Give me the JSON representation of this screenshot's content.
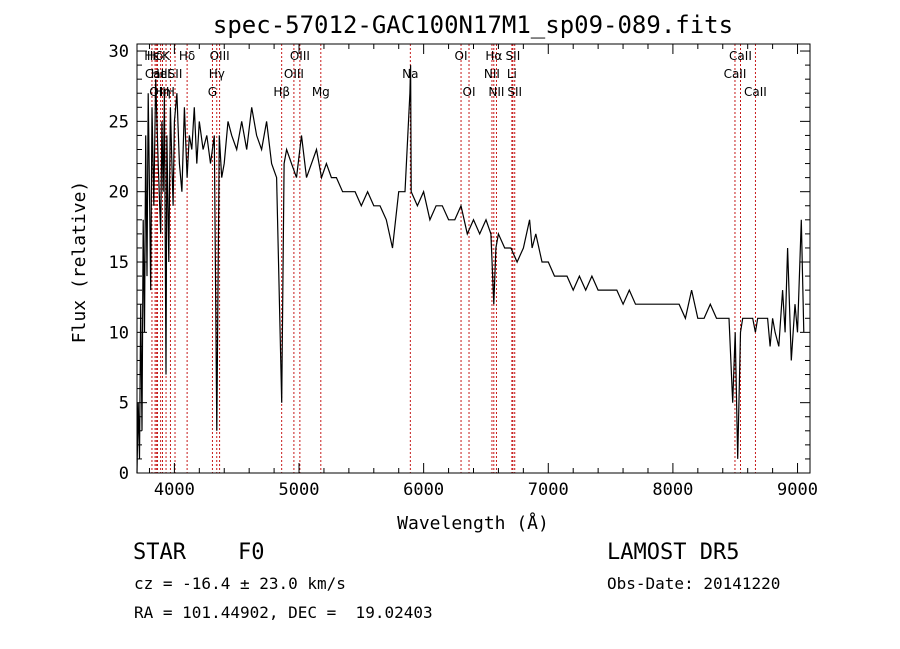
{
  "chart_data": {
    "type": "line",
    "title": "spec-57012-GAC100N17M1_sp09-089.fits",
    "xlabel": "Wavelength (Å)",
    "ylabel": "Flux (relative)",
    "xlim": [
      3700,
      9100
    ],
    "ylim": [
      0,
      30.5
    ],
    "xticks": [
      4000,
      5000,
      6000,
      7000,
      8000,
      9000
    ],
    "yticks": [
      0,
      5,
      10,
      15,
      20,
      25,
      30
    ],
    "grid": false,
    "series": [
      {
        "x": [
          3700,
          3710,
          3720,
          3730,
          3740,
          3750,
          3760,
          3770,
          3780,
          3790,
          3800,
          3810,
          3820,
          3835,
          3850,
          3870,
          3890,
          3900,
          3910,
          3920,
          3933,
          3940,
          3955,
          3968,
          3980,
          3990,
          4000,
          4020,
          4040,
          4060,
          4080,
          4102,
          4120,
          4140,
          4160,
          4180,
          4200,
          4230,
          4260,
          4290,
          4320,
          4340,
          4360,
          4380,
          4400,
          4430,
          4460,
          4500,
          4540,
          4580,
          4620,
          4660,
          4700,
          4740,
          4780,
          4820,
          4861,
          4880,
          4900,
          4940,
          4980,
          5020,
          5060,
          5100,
          5140,
          5180,
          5220,
          5260,
          5300,
          5350,
          5400,
          5450,
          5500,
          5550,
          5600,
          5650,
          5700,
          5750,
          5800,
          5850,
          5890,
          5895,
          5900,
          5950,
          6000,
          6050,
          6100,
          6150,
          6200,
          6250,
          6300,
          6350,
          6400,
          6450,
          6500,
          6540,
          6563,
          6580,
          6600,
          6650,
          6700,
          6750,
          6800,
          6850,
          6870,
          6900,
          6950,
          7000,
          7050,
          7100,
          7150,
          7200,
          7250,
          7300,
          7350,
          7400,
          7450,
          7500,
          7550,
          7600,
          7650,
          7700,
          7750,
          7800,
          7850,
          7900,
          7950,
          8000,
          8050,
          8100,
          8150,
          8200,
          8250,
          8300,
          8350,
          8400,
          8450,
          8480,
          8500,
          8520,
          8542,
          8560,
          8600,
          8640,
          8662,
          8680,
          8720,
          8760,
          8780,
          8800,
          8820,
          8850,
          8880,
          8900,
          8920,
          8950,
          8980,
          9000,
          9030,
          9050
        ],
        "y": [
          0,
          5,
          1,
          12,
          3,
          18,
          10,
          24,
          14,
          27,
          20,
          13,
          26,
          19,
          28,
          22,
          17,
          25,
          20,
          27,
          7,
          24,
          15,
          26,
          22,
          19,
          25,
          27,
          22,
          20,
          26,
          21,
          24,
          23,
          26,
          22,
          25,
          23,
          24,
          22,
          24,
          3,
          24,
          21,
          22,
          25,
          24,
          23,
          25,
          23,
          26,
          24,
          23,
          25,
          22,
          21,
          5,
          22,
          23,
          22,
          21,
          24,
          21,
          22,
          23,
          21,
          22,
          21,
          21,
          20,
          20,
          20,
          19,
          20,
          19,
          19,
          18,
          16,
          20,
          20,
          27,
          29,
          20,
          19,
          20,
          18,
          19,
          19,
          18,
          18,
          19,
          17,
          18,
          17,
          18,
          17,
          12,
          16,
          17,
          16,
          16,
          15,
          16,
          18,
          16,
          17,
          15,
          15,
          14,
          14,
          14,
          13,
          14,
          13,
          14,
          13,
          13,
          13,
          13,
          12,
          13,
          12,
          12,
          12,
          12,
          12,
          12,
          12,
          12,
          11,
          13,
          11,
          11,
          12,
          11,
          11,
          11,
          5,
          10,
          1,
          10,
          11,
          11,
          11,
          10,
          11,
          11,
          11,
          9,
          11,
          10,
          9,
          13,
          10,
          16,
          8,
          12,
          10,
          18,
          10
        ]
      }
    ],
    "lines": [
      {
        "name": "Hε",
        "x": 3820,
        "row": 1
      },
      {
        "name": "CaII",
        "x": 3855,
        "row": 2
      },
      {
        "name": "OII",
        "x": 3865,
        "row": 3
      },
      {
        "name": "Hδ",
        "x": 3845,
        "row": 1
      },
      {
        "name": "K",
        "x": 3933,
        "row": 1
      },
      {
        "name": "HeI",
        "x": 3890,
        "row": 2
      },
      {
        "name": "Hη",
        "x": 3905,
        "row": 3
      },
      {
        "name": "H",
        "x": 3968,
        "row": 3
      },
      {
        "name": "SII",
        "x": 4005,
        "row": 2
      },
      {
        "name": "Hδ",
        "x": 4102,
        "row": 1
      },
      {
        "name": "OIII",
        "x": 4363,
        "row": 1
      },
      {
        "name": "Hγ",
        "x": 4340,
        "row": 2
      },
      {
        "name": "G",
        "x": 4305,
        "row": 3
      },
      {
        "name": "OIII",
        "x": 5007,
        "row": 1
      },
      {
        "name": "OIII",
        "x": 4959,
        "row": 2
      },
      {
        "name": "Hβ",
        "x": 4861,
        "row": 3
      },
      {
        "name": "Mg",
        "x": 5175,
        "row": 3
      },
      {
        "name": "Na",
        "x": 5893,
        "row": 2
      },
      {
        "name": "OI",
        "x": 6300,
        "row": 1
      },
      {
        "name": "OI",
        "x": 6364,
        "row": 3
      },
      {
        "name": "Hα",
        "x": 6563,
        "row": 1
      },
      {
        "name": "NII",
        "x": 6548,
        "row": 2
      },
      {
        "name": "NII",
        "x": 6584,
        "row": 3
      },
      {
        "name": "SII",
        "x": 6716,
        "row": 1
      },
      {
        "name": "Li",
        "x": 6708,
        "row": 2
      },
      {
        "name": "SII",
        "x": 6731,
        "row": 3
      },
      {
        "name": "CaII",
        "x": 8542,
        "row": 1
      },
      {
        "name": "CaII",
        "x": 8498,
        "row": 2
      },
      {
        "name": "CaII",
        "x": 8662,
        "row": 3
      }
    ]
  },
  "info": {
    "class_label": "STAR",
    "subclass": "F0",
    "survey": "LAMOST DR5",
    "cz_line": "cz = -16.4 ± 23.0 km/s",
    "obs_date": "Obs-Date: 20141220",
    "coords": "RA = 101.44902, DEC =  19.02403"
  }
}
